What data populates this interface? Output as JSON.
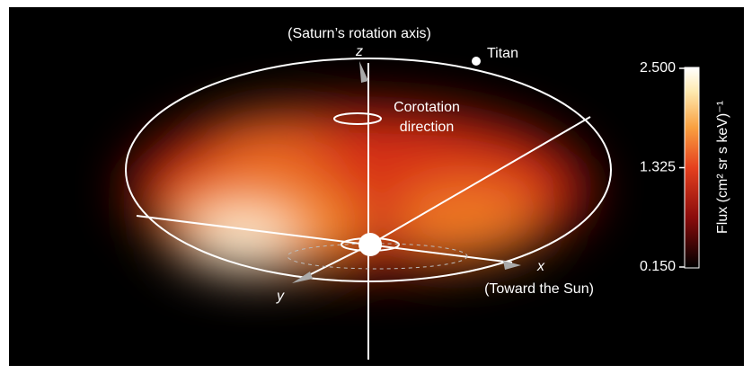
{
  "labels": {
    "axis_caption": "(Saturn’s rotation axis)",
    "z": "z",
    "titan": "Titan",
    "corotation": [
      "Corotation",
      "direction"
    ],
    "x": "x",
    "sun": "(Toward the Sun)",
    "y": "y"
  },
  "colorbar": {
    "label": "Flux (cm² sr s keV)⁻¹",
    "lim": [
      0.15,
      2.5
    ],
    "ticks": [
      {
        "value": 2.5,
        "label": "2.500"
      },
      {
        "value": 1.325,
        "label": "1.325"
      },
      {
        "value": 0.15,
        "label": "0.150"
      }
    ]
  }
}
